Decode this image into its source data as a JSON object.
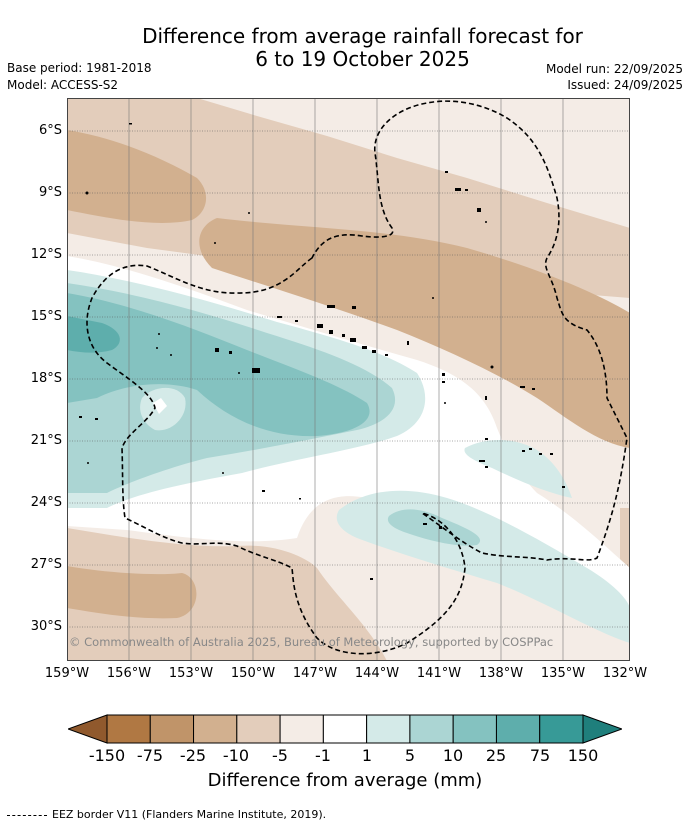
{
  "title": {
    "line1": "Difference from average rainfall forecast for",
    "line2": "6 to 19 October 2025"
  },
  "meta": {
    "base_period": "Base period: 1981-2018",
    "model": "Model: ACCESS-S2",
    "model_run": "Model run: 22/09/2025",
    "issued": "Issued: 24/09/2025"
  },
  "map": {
    "lat_labels": [
      "6°S",
      "9°S",
      "12°S",
      "15°S",
      "18°S",
      "21°S",
      "24°S",
      "27°S",
      "30°S"
    ],
    "lon_labels": [
      "159°W",
      "156°W",
      "153°W",
      "150°W",
      "147°W",
      "144°W",
      "141°W",
      "138°W",
      "135°W",
      "132°W"
    ],
    "copyright": "© Commonwealth of Australia 2025, Bureau of Meteorology, supported by COSPPac"
  },
  "colorbar": {
    "labels": [
      "-150",
      "-75",
      "-25",
      "-10",
      "-5",
      "-1",
      "1",
      "5",
      "10",
      "25",
      "75",
      "150"
    ],
    "colors": [
      "#b07843",
      "#c09469",
      "#d2b08f",
      "#e3cdbb",
      "#f4ece6",
      "#ffffff",
      "#d4eae8",
      "#abd5d3",
      "#84c2c0",
      "#5eaeac",
      "#379a97"
    ],
    "end_low": "#90592d",
    "end_high": "#1f7f7c",
    "axis_label": "Difference from average (mm)"
  },
  "legend": {
    "eez": "EEZ border V11 (Flanders Marine Institute, 2019)."
  }
}
